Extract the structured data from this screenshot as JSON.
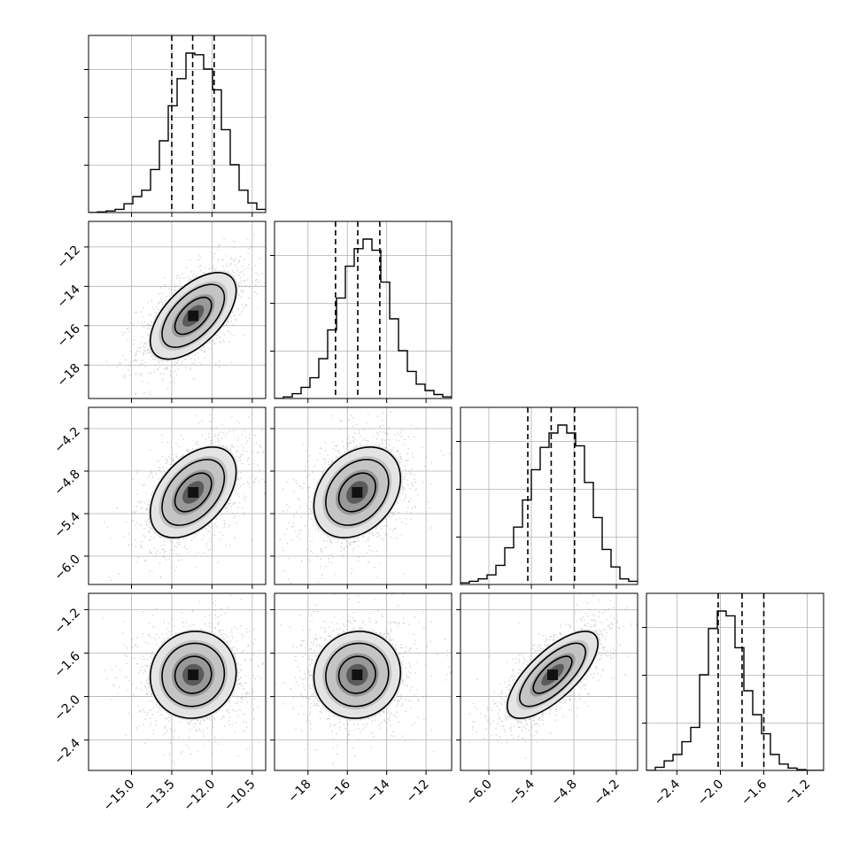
{
  "chart_data": {
    "type": "corner",
    "grid": true,
    "parameters": [
      {
        "range": [
          -16.6,
          -10.0
        ],
        "ticks": [
          -15.0,
          -13.5,
          -12.0,
          -10.5
        ],
        "tick_labels": [
          "−15.0",
          "−13.5",
          "−12.0",
          "−10.5"
        ],
        "quantiles": [
          -13.5,
          -12.72,
          -11.92
        ],
        "mean": -12.7,
        "sd": 0.8,
        "hist_density": [
          0.0,
          0.004,
          0.01,
          0.02,
          0.055,
          0.1,
          0.14,
          0.27,
          0.45,
          0.67,
          0.84,
          1.0,
          0.99,
          0.9,
          0.77,
          0.52,
          0.3,
          0.14,
          0.06,
          0.02
        ]
      },
      {
        "range": [
          -19.7,
          -10.7
        ],
        "ticks": [
          -18,
          -16,
          -14,
          -12
        ],
        "tick_labels": [
          "−18",
          "−16",
          "−14",
          "−12"
        ],
        "quantiles": [
          -16.6,
          -15.47,
          -14.35
        ],
        "mean": -15.5,
        "sd": 1.1,
        "hist_density": [
          0.0,
          0.01,
          0.03,
          0.07,
          0.13,
          0.25,
          0.43,
          0.63,
          0.83,
          0.94,
          1.0,
          0.93,
          0.73,
          0.5,
          0.3,
          0.17,
          0.09,
          0.05,
          0.025,
          0.01
        ]
      },
      {
        "range": [
          -6.4,
          -3.9
        ],
        "ticks": [
          -6.0,
          -5.4,
          -4.8,
          -4.2
        ],
        "tick_labels": [
          "−6.0",
          "−5.4",
          "−4.8",
          "−4.2"
        ],
        "quantiles": [
          -5.45,
          -5.12,
          -4.79
        ],
        "mean": -5.1,
        "sd": 0.32,
        "hist_density": [
          0.01,
          0.02,
          0.035,
          0.06,
          0.12,
          0.23,
          0.36,
          0.53,
          0.72,
          0.86,
          0.95,
          1.0,
          0.95,
          0.87,
          0.64,
          0.42,
          0.22,
          0.11,
          0.035,
          0.02
        ]
      },
      {
        "range": [
          -2.68,
          -1.05
        ],
        "ticks": [
          -2.4,
          -2.0,
          -1.6,
          -1.2
        ],
        "tick_labels": [
          "−2.4",
          "−2.0",
          "−1.6",
          "−1.2"
        ],
        "quantiles": [
          -2.02,
          -1.8,
          -1.6
        ],
        "mean": -1.8,
        "sd": 0.2,
        "hist_density": [
          0.0,
          0.02,
          0.06,
          0.1,
          0.18,
          0.27,
          0.6,
          0.89,
          1.0,
          0.97,
          0.77,
          0.5,
          0.35,
          0.23,
          0.1,
          0.04,
          0.015,
          0.005,
          0.0,
          0.0
        ]
      }
    ],
    "correlations": [
      [
        1.0,
        0.58,
        0.45,
        0.05
      ],
      [
        0.58,
        1.0,
        0.3,
        0.05
      ],
      [
        0.45,
        0.3,
        1.0,
        0.72
      ],
      [
        0.05,
        0.05,
        0.72,
        1.0
      ]
    ]
  }
}
